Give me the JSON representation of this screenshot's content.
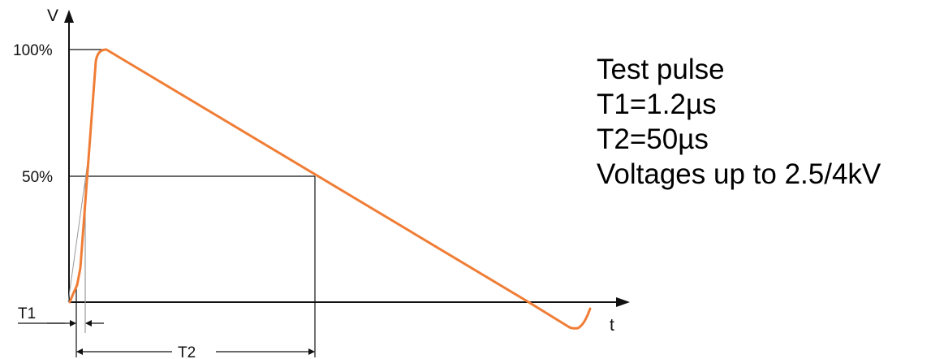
{
  "axes": {
    "y_label": "V",
    "x_label": "t",
    "y_ticks": [
      "100%",
      "50%"
    ]
  },
  "markers": {
    "t1_label": "T1",
    "t2_label": "T2"
  },
  "info": {
    "lines": [
      "Test pulse",
      "T1=1.2µs",
      "T2=50µs",
      "Voltages up to 2.5/4kV"
    ]
  },
  "colors": {
    "pulse": "#f07d35",
    "lines": "#111111"
  }
}
